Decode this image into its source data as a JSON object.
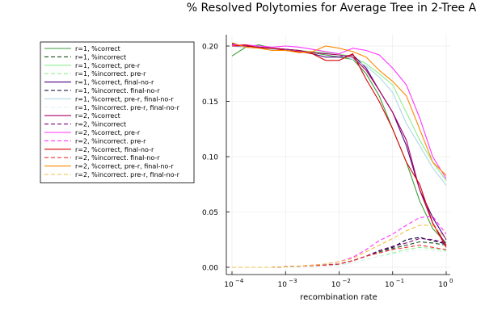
{
  "chart_data": {
    "type": "line",
    "title": "% Resolved Polytomies for Average Tree in 2-Tree A",
    "xlabel": "recombination rate",
    "ylabel": "",
    "xscale": "log",
    "xlim": [
      0.0001,
      1
    ],
    "ylim": [
      0,
      0.21
    ],
    "grid": true,
    "legend_position": "top-left-outside",
    "x": [
      0.0001,
      0.00018,
      0.00032,
      0.00056,
      0.001,
      0.0018,
      0.0032,
      0.0056,
      0.01,
      0.018,
      0.032,
      0.056,
      0.1,
      0.18,
      0.32,
      0.56,
      1
    ],
    "y_ticks": [
      {
        "value": 0.0,
        "label": "0.00"
      },
      {
        "value": 0.05,
        "label": "0.05"
      },
      {
        "value": 0.1,
        "label": "0.10"
      },
      {
        "value": 0.15,
        "label": "0.15"
      },
      {
        "value": 0.2,
        "label": "0.20"
      }
    ],
    "x_ticks": [
      {
        "value": 0.0001,
        "base": "10",
        "exp": "−4"
      },
      {
        "value": 0.001,
        "base": "10",
        "exp": "−3"
      },
      {
        "value": 0.01,
        "base": "10",
        "exp": "−2"
      },
      {
        "value": 0.1,
        "base": "10",
        "exp": "−1"
      },
      {
        "value": 1,
        "base": "10",
        "exp": "0"
      }
    ],
    "series": [
      {
        "name": "r=1, %correct",
        "color": "#3a9d3a",
        "dash": "solid",
        "values": [
          0.191,
          0.199,
          0.201,
          0.198,
          0.197,
          0.196,
          0.194,
          0.192,
          0.19,
          0.188,
          0.175,
          0.155,
          0.125,
          0.095,
          0.06,
          0.035,
          0.022
        ]
      },
      {
        "name": "r=1, %incorrect",
        "color": "#1e4d1e",
        "dash": "dashed",
        "values": [
          0,
          0,
          0,
          0,
          0.0005,
          0.001,
          0.0015,
          0.002,
          0.003,
          0.006,
          0.01,
          0.014,
          0.017,
          0.02,
          0.023,
          0.022,
          0.02
        ]
      },
      {
        "name": "r=1, %correct, pre-r",
        "color": "#90ee90",
        "dash": "solid",
        "values": [
          0.2,
          0.199,
          0.198,
          0.197,
          0.196,
          0.196,
          0.195,
          0.194,
          0.193,
          0.19,
          0.184,
          0.175,
          0.165,
          0.14,
          0.115,
          0.095,
          0.078
        ]
      },
      {
        "name": "r=1, %incorrect. pre-r",
        "color": "#90ee90",
        "dash": "dashed",
        "values": [
          0,
          0,
          0,
          0,
          0.0003,
          0.0006,
          0.001,
          0.0015,
          0.002,
          0.004,
          0.007,
          0.01,
          0.013,
          0.016,
          0.018,
          0.017,
          0.015
        ]
      },
      {
        "name": "r=1, %correct, final-no-r",
        "color": "#4b0082",
        "dash": "solid",
        "values": [
          0.202,
          0.2,
          0.199,
          0.198,
          0.197,
          0.196,
          0.193,
          0.19,
          0.19,
          0.192,
          0.18,
          0.16,
          0.14,
          0.11,
          0.07,
          0.045,
          0.025
        ]
      },
      {
        "name": "r=1, %incorrect. final-no-r",
        "color": "#000033",
        "dash": "dashed",
        "values": [
          0,
          0,
          0,
          0,
          0.0005,
          0.001,
          0.0015,
          0.002,
          0.003,
          0.006,
          0.01,
          0.015,
          0.018,
          0.025,
          0.027,
          0.024,
          0.021
        ]
      },
      {
        "name": "r=1, %correct, pre-r, final-no-r",
        "color": "#add8e6",
        "dash": "solid",
        "values": [
          0.2,
          0.199,
          0.198,
          0.197,
          0.196,
          0.195,
          0.194,
          0.193,
          0.192,
          0.188,
          0.182,
          0.172,
          0.158,
          0.13,
          0.11,
          0.09,
          0.074
        ]
      },
      {
        "name": "r=1, %incorrect. pre-r, final-no-r",
        "color": "#e0f4f7",
        "dash": "dashed",
        "values": [
          0,
          0,
          0,
          0,
          0.0003,
          0.0006,
          0.001,
          0.0015,
          0.002,
          0.004,
          0.007,
          0.01,
          0.012,
          0.014,
          0.016,
          0.015,
          0.014
        ]
      },
      {
        "name": "r=2, %correct",
        "color": "#aa0066",
        "dash": "solid",
        "values": [
          0.2,
          0.2,
          0.199,
          0.198,
          0.197,
          0.196,
          0.194,
          0.193,
          0.192,
          0.19,
          0.178,
          0.16,
          0.14,
          0.115,
          0.07,
          0.04,
          0.02
        ]
      },
      {
        "name": "r=2, %incorrect",
        "color": "#7a0078",
        "dash": "dashed",
        "values": [
          0,
          0,
          0,
          0,
          0.0005,
          0.001,
          0.0015,
          0.002,
          0.003,
          0.006,
          0.01,
          0.015,
          0.019,
          0.022,
          0.026,
          0.025,
          0.022
        ]
      },
      {
        "name": "r=2, %correct, pre-r",
        "color": "#ff33ff",
        "dash": "solid",
        "values": [
          0.201,
          0.201,
          0.2,
          0.199,
          0.2,
          0.199,
          0.197,
          0.195,
          0.193,
          0.198,
          0.196,
          0.192,
          0.18,
          0.165,
          0.135,
          0.1,
          0.08
        ]
      },
      {
        "name": "r=2, %incorrect. pre-r",
        "color": "#ff33ff",
        "dash": "dashed",
        "values": [
          0,
          0,
          0,
          0,
          0.0005,
          0.001,
          0.002,
          0.003,
          0.005,
          0.009,
          0.016,
          0.024,
          0.03,
          0.038,
          0.045,
          0.046,
          0.03
        ]
      },
      {
        "name": "r=2, %correct, final-no-r",
        "color": "#dd0000",
        "dash": "solid",
        "values": [
          0.2,
          0.201,
          0.198,
          0.198,
          0.196,
          0.195,
          0.193,
          0.187,
          0.187,
          0.193,
          0.17,
          0.15,
          0.125,
          0.095,
          0.075,
          0.04,
          0.018
        ]
      },
      {
        "name": "r=2, %incorrect. final-no-r",
        "color": "#ee3333",
        "dash": "dashed",
        "values": [
          0,
          0,
          0,
          0,
          0.0005,
          0.001,
          0.0015,
          0.002,
          0.003,
          0.006,
          0.01,
          0.013,
          0.016,
          0.018,
          0.02,
          0.018,
          0.016
        ]
      },
      {
        "name": "r=2, %correct, pre-r, final-no-r",
        "color": "#ff8800",
        "dash": "solid",
        "values": [
          0.203,
          0.199,
          0.198,
          0.196,
          0.196,
          0.194,
          0.195,
          0.2,
          0.198,
          0.195,
          0.19,
          0.178,
          0.168,
          0.155,
          0.125,
          0.095,
          0.083
        ]
      },
      {
        "name": "r=2, %incorrect. pre-r, final-no-r",
        "color": "#f0c040",
        "dash": "dashed",
        "values": [
          0,
          0,
          0,
          0,
          0.0005,
          0.001,
          0.002,
          0.003,
          0.005,
          0.008,
          0.014,
          0.02,
          0.026,
          0.033,
          0.038,
          0.038,
          0.026
        ]
      }
    ]
  }
}
